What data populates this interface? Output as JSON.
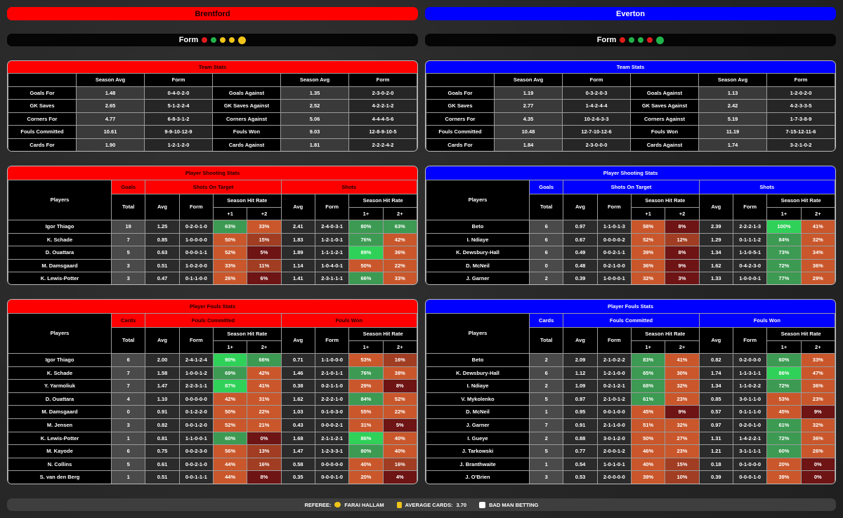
{
  "teams": [
    {
      "name": "Brentford",
      "color": "#ff0000",
      "text_color": "#1a0000",
      "form_label": "Form",
      "team_stats": {
        "title": "Team Stats",
        "header": [
          "Season Avg",
          "Form",
          "Season Avg",
          "Form"
        ],
        "rows": [
          [
            "Goals For",
            "1.48",
            "0-4-0-2-0",
            "Goals Against",
            "1.35",
            "2-3-0-2-0"
          ],
          [
            "GK Saves",
            "2.65",
            "5-1-2-2-4",
            "GK Saves Against",
            "2.52",
            "4-2-2-1-2"
          ],
          [
            "Corners For",
            "4.77",
            "6-8-3-1-2",
            "Corners Against",
            "5.06",
            "4-4-4-5-6"
          ],
          [
            "Fouls Committed",
            "10.61",
            "9-9-10-12-9",
            "Fouls Won",
            "9.03",
            "12-8-9-10-5"
          ],
          [
            "Cards For",
            "1.90",
            "1-2-1-2-0",
            "Cards Against",
            "1.81",
            "2-2-2-4-2"
          ]
        ]
      },
      "shooting": {
        "title": "Player Shooting Stats",
        "players_label": "Players",
        "count_label": "Goals",
        "total_label": "Total",
        "group1": {
          "title": "Shots On Target",
          "avg": "Avg",
          "form": "Form",
          "hit_rate": "Season Hit Rate",
          "c1": "+1",
          "c2": "+2"
        },
        "group2": {
          "title": "Shots",
          "avg": "Avg",
          "form": "Form",
          "hit_rate": "Season Hit Rate",
          "c1": "1+",
          "c2": "2+"
        },
        "rows": [
          [
            "Igor Thiago",
            "19",
            "1.25",
            "0-2-0-1-0",
            "63%",
            "33%",
            "2.41",
            "2-4-0-3-1",
            "80%",
            "63%"
          ],
          [
            "K. Schade",
            "7",
            "0.85",
            "1-0-0-0-0",
            "50%",
            "15%",
            "1.83",
            "1-2-1-0-1",
            "76%",
            "42%"
          ],
          [
            "D. Ouattara",
            "5",
            "0.63",
            "0-0-0-1-1",
            "52%",
            "5%",
            "1.89",
            "1-1-1-2-1",
            "89%",
            "36%"
          ],
          [
            "M. Damsgaard",
            "3",
            "0.51",
            "1-0-2-0-0",
            "33%",
            "11%",
            "1.14",
            "1-0-4-0-1",
            "50%",
            "22%"
          ],
          [
            "K. Lewis-Potter",
            "3",
            "0.47",
            "0-1-1-0-0",
            "26%",
            "6%",
            "1.41",
            "2-3-1-1-1",
            "66%",
            "33%"
          ]
        ]
      },
      "fouls": {
        "title": "Player Fouls Stats",
        "players_label": "Players",
        "count_label": "Cards",
        "total_label": "Total",
        "group1": {
          "title": "Fouls Committed",
          "avg": "Avg",
          "form": "Form",
          "hit_rate": "Season Hit Rate",
          "c1": "1+",
          "c2": "2+"
        },
        "group2": {
          "title": "Fouls Won",
          "avg": "Avg",
          "form": "Form",
          "hit_rate": "Season Hit Rate",
          "c1": "1+",
          "c2": "2+"
        },
        "rows": [
          [
            "Igor Thiago",
            "6",
            "2.00",
            "2-4-1-2-4",
            "90%",
            "66%",
            "0.71",
            "1-1-0-0-0",
            "53%",
            "16%"
          ],
          [
            "K. Schade",
            "7",
            "1.58",
            "1-0-0-1-2",
            "69%",
            "42%",
            "1.46",
            "2-1-0-1-1",
            "76%",
            "38%"
          ],
          [
            "Y. Yarmoliuk",
            "7",
            "1.47",
            "2-2-3-1-1",
            "87%",
            "41%",
            "0.38",
            "0-2-1-1-0",
            "29%",
            "8%"
          ],
          [
            "D. Ouattara",
            "4",
            "1.10",
            "0-0-0-0-0",
            "42%",
            "31%",
            "1.62",
            "2-2-2-1-0",
            "84%",
            "52%"
          ],
          [
            "M. Damsgaard",
            "0",
            "0.91",
            "0-1-2-2-0",
            "50%",
            "22%",
            "1.03",
            "0-1-0-3-0",
            "55%",
            "22%"
          ],
          [
            "M. Jensen",
            "3",
            "0.82",
            "0-0-1-2-0",
            "52%",
            "21%",
            "0.43",
            "0-0-0-2-1",
            "31%",
            "5%"
          ],
          [
            "K. Lewis-Potter",
            "1",
            "0.81",
            "1-1-0-0-1",
            "60%",
            "0%",
            "1.68",
            "2-1-1-2-1",
            "86%",
            "40%"
          ],
          [
            "M. Kayode",
            "6",
            "0.75",
            "0-0-2-3-0",
            "56%",
            "13%",
            "1.47",
            "1-2-3-3-1",
            "80%",
            "40%"
          ],
          [
            "N. Collins",
            "5",
            "0.61",
            "0-0-2-1-0",
            "44%",
            "16%",
            "0.58",
            "0-0-0-0-0",
            "40%",
            "16%"
          ],
          [
            "S. van den Berg",
            "1",
            "0.51",
            "0-0-1-1-1",
            "44%",
            "8%",
            "0.35",
            "0-0-0-1-0",
            "20%",
            "4%"
          ]
        ]
      }
    },
    {
      "name": "Everton",
      "color": "#0000ff",
      "text_color": "#ffffff",
      "form_label": "Form",
      "team_stats": {
        "title": "Team Stats",
        "header": [
          "Season Avg",
          "Form",
          "Season Avg",
          "Form"
        ],
        "rows": [
          [
            "Goals For",
            "1.19",
            "0-3-2-0-3",
            "Goals Against",
            "1.13",
            "1-2-0-2-0"
          ],
          [
            "GK Saves",
            "2.77",
            "1-4-2-4-4",
            "GK Saves Against",
            "2.42",
            "4-2-3-3-5"
          ],
          [
            "Corners For",
            "4.35",
            "10-2-6-3-3",
            "Corners Against",
            "5.19",
            "1-7-3-8-9"
          ],
          [
            "Fouls Committed",
            "10.48",
            "12-7-10-12-6",
            "Fouls Won",
            "11.19",
            "7-15-12-11-6"
          ],
          [
            "Cards For",
            "1.84",
            "2-3-0-0-0",
            "Cards Against",
            "1.74",
            "3-2-1-0-2"
          ]
        ]
      },
      "shooting": {
        "title": "Player Shooting Stats",
        "players_label": "Players",
        "count_label": "Goals",
        "total_label": "Total",
        "group1": {
          "title": "Shots On Target",
          "avg": "Avg",
          "form": "Form",
          "hit_rate": "Season Hit Rate",
          "c1": "+1",
          "c2": "+2"
        },
        "group2": {
          "title": "Shots",
          "avg": "Avg",
          "form": "Form",
          "hit_rate": "Season Hit Rate",
          "c1": "1+",
          "c2": "2+"
        },
        "rows": [
          [
            "Beto",
            "6",
            "0.97",
            "1-1-0-1-3",
            "58%",
            "8%",
            "2.39",
            "2-2-2-1-3",
            "100%",
            "41%"
          ],
          [
            "I. Ndiaye",
            "6",
            "0.67",
            "0-0-0-0-2",
            "52%",
            "12%",
            "1.29",
            "0-1-1-1-2",
            "84%",
            "32%"
          ],
          [
            "K. Dewsbury-Hall",
            "6",
            "0.49",
            "0-0-2-1-1",
            "39%",
            "8%",
            "1.34",
            "1-1-0-5-1",
            "73%",
            "34%"
          ],
          [
            "D. McNeil",
            "0",
            "0.48",
            "0-2-1-0-0",
            "36%",
            "9%",
            "1.62",
            "0-4-2-3-0",
            "72%",
            "36%"
          ],
          [
            "J. Garner",
            "2",
            "0.39",
            "1-0-0-0-1",
            "32%",
            "3%",
            "1.33",
            "1-0-0-0-1",
            "77%",
            "29%"
          ]
        ]
      },
      "fouls": {
        "title": "Player Fouls Stats",
        "players_label": "Players",
        "count_label": "Cards",
        "total_label": "Total",
        "group1": {
          "title": "Fouls Committed",
          "avg": "Avg",
          "form": "Form",
          "hit_rate": "Season Hit Rate",
          "c1": "1+",
          "c2": "2+"
        },
        "group2": {
          "title": "Fouls Won",
          "avg": "Avg",
          "form": "Form",
          "hit_rate": "Season Hit Rate",
          "c1": "1+",
          "c2": "2+"
        },
        "rows": [
          [
            "Beto",
            "2",
            "2.09",
            "2-1-0-2-2",
            "83%",
            "41%",
            "0.82",
            "0-2-0-0-0",
            "60%",
            "33%"
          ],
          [
            "K. Dewsbury-Hall",
            "6",
            "1.12",
            "1-2-1-0-0",
            "65%",
            "30%",
            "1.74",
            "1-1-3-1-1",
            "86%",
            "47%"
          ],
          [
            "I. Ndiaye",
            "2",
            "1.09",
            "0-2-1-2-1",
            "68%",
            "32%",
            "1.34",
            "1-1-0-2-2",
            "72%",
            "36%"
          ],
          [
            "V. Mykolenko",
            "5",
            "0.97",
            "2-1-0-1-2",
            "61%",
            "23%",
            "0.85",
            "3-0-1-1-0",
            "53%",
            "23%"
          ],
          [
            "D. McNeil",
            "1",
            "0.95",
            "0-0-1-0-0",
            "45%",
            "9%",
            "0.57",
            "0-1-1-1-0",
            "45%",
            "9%"
          ],
          [
            "J. Garner",
            "7",
            "0.91",
            "2-1-1-0-0",
            "51%",
            "32%",
            "0.97",
            "0-2-0-1-0",
            "61%",
            "32%"
          ],
          [
            "I. Gueye",
            "2",
            "0.88",
            "3-0-1-2-0",
            "50%",
            "27%",
            "1.31",
            "1-4-2-2-1",
            "72%",
            "36%"
          ],
          [
            "J. Tarkowski",
            "5",
            "0.77",
            "2-0-0-1-2",
            "46%",
            "23%",
            "1.21",
            "3-1-1-1-1",
            "60%",
            "26%"
          ],
          [
            "J. Branthwaite",
            "1",
            "0.54",
            "1-0-1-0-1",
            "40%",
            "15%",
            "0.18",
            "0-1-0-0-0",
            "20%",
            "0%"
          ],
          [
            "J. O'Brien",
            "3",
            "0.53",
            "2-0-0-0-0",
            "39%",
            "10%",
            "0.39",
            "0-0-0-1-0",
            "39%",
            "0%"
          ]
        ]
      }
    }
  ],
  "footer": {
    "referee_label": "REFEREE:",
    "referee": "FARAI HALLAM",
    "cards_label": "AVERAGE CARDS:",
    "cards": "3.70",
    "brand": "BAD MAN BETTING"
  }
}
